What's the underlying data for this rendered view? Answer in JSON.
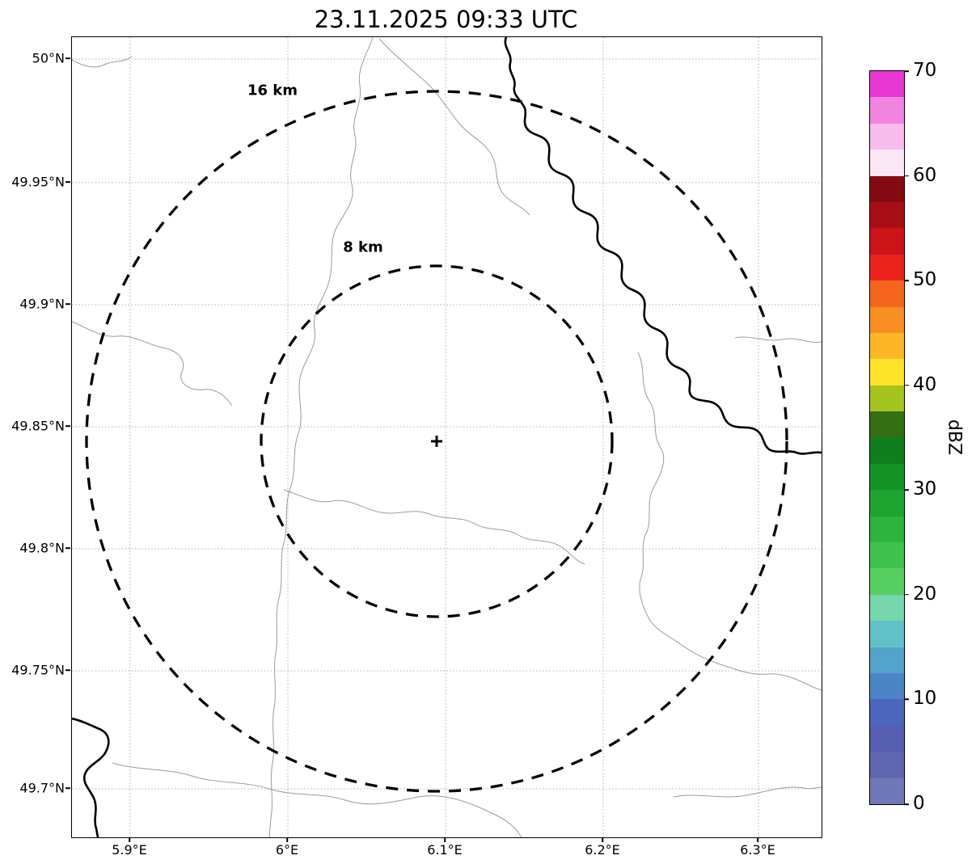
{
  "title": "23.11.2025 09:33 UTC",
  "map": {
    "range_rings": [
      {
        "label": "16 km",
        "radius_km": 16
      },
      {
        "label": "8 km",
        "radius_km": 8
      }
    ],
    "center_marker": "+"
  },
  "axes": {
    "x_ticks": [
      "5.9°E",
      "6°E",
      "6.1°E",
      "6.2°E",
      "6.3°E"
    ],
    "y_ticks": [
      "50°N",
      "49.95°N",
      "49.9°N",
      "49.85°N",
      "49.8°N",
      "49.75°N",
      "49.7°N"
    ]
  },
  "colorbar": {
    "label": "dBZ",
    "tick_labels_top_to_bottom": [
      "70",
      "60",
      "50",
      "40",
      "30",
      "20",
      "10",
      "0"
    ],
    "min_dbz": 0,
    "max_dbz": 70,
    "colors_bottom_to_top": [
      "#7178b8",
      "#6066b0",
      "#555eb1",
      "#4b66bc",
      "#4c85c5",
      "#53a3cb",
      "#60c2c6",
      "#77d6ad",
      "#57ce62",
      "#3fc24e",
      "#2cb43d",
      "#1ea531",
      "#169327",
      "#0f7f1e",
      "#346f13",
      "#a6c41d",
      "#fde428",
      "#fdb726",
      "#f98e22",
      "#f4661e",
      "#ea241c",
      "#cc1318",
      "#a80e15",
      "#850b12",
      "#fbe6f6",
      "#f8bcec",
      "#f184df",
      "#e937d3"
    ]
  },
  "chart_data": {
    "type": "map",
    "title": "23.11.2025 09:33 UTC",
    "projection": "lat-lon",
    "x_axis": {
      "ticks": [
        5.9,
        6.0,
        6.1,
        6.2,
        6.3
      ],
      "tick_labels": [
        "5.9°E",
        "6°E",
        "6.1°E",
        "6.2°E",
        "6.3°E"
      ],
      "range": [
        5.863,
        6.34
      ]
    },
    "y_axis": {
      "ticks": [
        50.0,
        49.95,
        49.9,
        49.85,
        49.8,
        49.75,
        49.7
      ],
      "tick_labels": [
        "50°N",
        "49.95°N",
        "49.9°N",
        "49.85°N",
        "49.8°N",
        "49.75°N",
        "49.7°N"
      ],
      "range": [
        49.68,
        50.009
      ]
    },
    "grid": "dotted",
    "radar_site": {
      "lon_e": 6.095,
      "lat_n": 49.843
    },
    "range_rings_km": [
      8,
      16
    ],
    "reflectivity_echoes": "none visible (clear map)",
    "colorbar": {
      "label": "dBZ",
      "min": 0,
      "max": 70,
      "tick_step": 10,
      "n_color_steps": 28
    }
  }
}
